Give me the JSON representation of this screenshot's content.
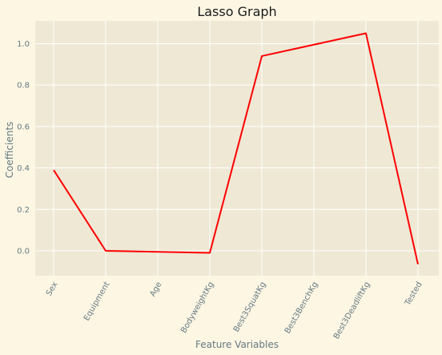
{
  "chart_data": {
    "type": "line",
    "title": "Lasso Graph",
    "xlabel": "Feature Variables",
    "ylabel": "Coefficients",
    "categories": [
      "Sex",
      "Equipment",
      "Age",
      "BodyweightKg",
      "Best3SquatKg",
      "Best3BenchKg",
      "Best3DeadliftKg",
      "Tested"
    ],
    "series": [
      {
        "values": [
          0.39,
          0.0,
          -0.005,
          -0.01,
          0.94,
          0.995,
          1.05,
          -0.065
        ],
        "color": "#ff0000"
      }
    ],
    "ylim": [
      -0.12,
      1.11
    ],
    "yticks": [
      0.0,
      0.2,
      0.4,
      0.6,
      0.8,
      1.0
    ],
    "ytick_labels": [
      "0.0",
      "0.2",
      "0.4",
      "0.6",
      "0.8",
      "1.0"
    ],
    "grid": true,
    "colors": {
      "background": "#fdf6e3",
      "plot_background": "#eee8d5",
      "grid": "#ffffff",
      "text": "#657b83",
      "title": "#1a1a1a"
    }
  }
}
